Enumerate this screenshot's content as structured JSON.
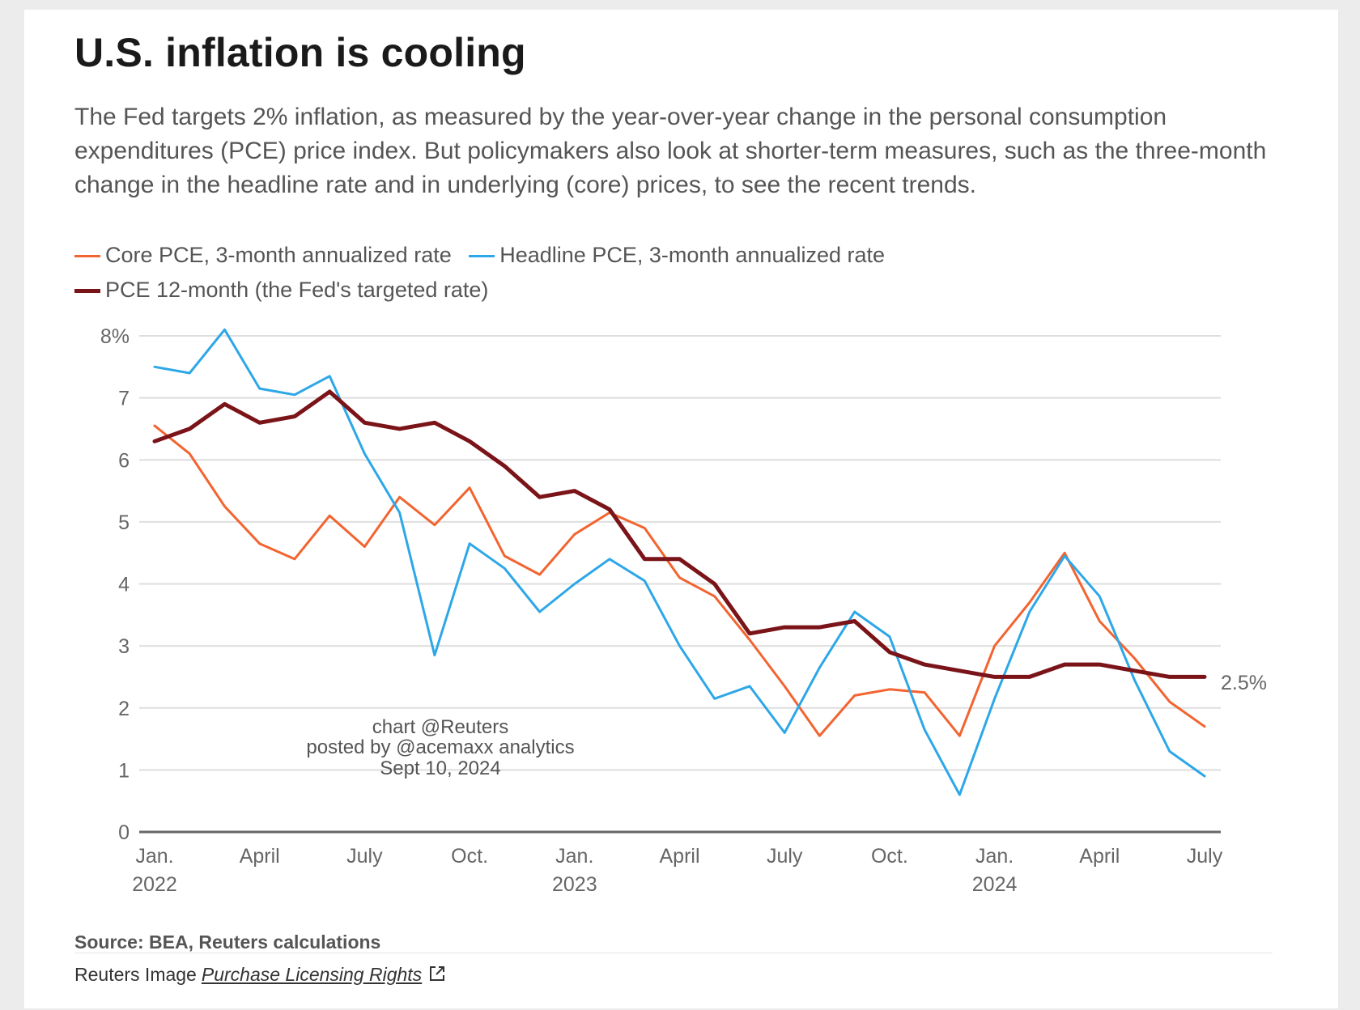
{
  "header": {
    "title": "U.S. inflation is cooling",
    "subtitle": "The Fed targets 2% inflation, as measured by the year-over-year change in the personal consumption expenditures (PCE) price index. But policymakers also look at shorter-term measures, such as the three-month change in the headline rate and in underlying (core) prices, to see the recent trends."
  },
  "legend": {
    "items": [
      {
        "label": "Core PCE, 3-month annualized rate",
        "color": "#f26430"
      },
      {
        "label": "Headline PCE, 3-month annualized rate",
        "color": "#2da7e8"
      },
      {
        "label": "PCE 12-month (the Fed's targeted rate)",
        "color": "#7a1419"
      }
    ]
  },
  "chart_data": {
    "type": "line",
    "x": [
      "2022-01",
      "2022-02",
      "2022-03",
      "2022-04",
      "2022-05",
      "2022-06",
      "2022-07",
      "2022-08",
      "2022-09",
      "2022-10",
      "2022-11",
      "2022-12",
      "2023-01",
      "2023-02",
      "2023-03",
      "2023-04",
      "2023-05",
      "2023-06",
      "2023-07",
      "2023-08",
      "2023-09",
      "2023-10",
      "2023-11",
      "2023-12",
      "2024-01",
      "2024-02",
      "2024-03",
      "2024-04",
      "2024-05",
      "2024-06",
      "2024-07"
    ],
    "x_ticks": [
      {
        "x": "2022-01",
        "label": "Jan.",
        "sub": "2022"
      },
      {
        "x": "2022-04",
        "label": "April",
        "sub": ""
      },
      {
        "x": "2022-07",
        "label": "July",
        "sub": ""
      },
      {
        "x": "2022-10",
        "label": "Oct.",
        "sub": ""
      },
      {
        "x": "2023-01",
        "label": "Jan.",
        "sub": "2023"
      },
      {
        "x": "2023-04",
        "label": "April",
        "sub": ""
      },
      {
        "x": "2023-07",
        "label": "July",
        "sub": ""
      },
      {
        "x": "2023-10",
        "label": "Oct.",
        "sub": ""
      },
      {
        "x": "2024-01",
        "label": "Jan.",
        "sub": "2024"
      },
      {
        "x": "2024-04",
        "label": "April",
        "sub": ""
      },
      {
        "x": "2024-07",
        "label": "July",
        "sub": ""
      }
    ],
    "y_ticks": [
      {
        "value": 8,
        "label": "8%"
      },
      {
        "value": 7,
        "label": "7"
      },
      {
        "value": 6,
        "label": "6"
      },
      {
        "value": 5,
        "label": "5"
      },
      {
        "value": 4,
        "label": "4"
      },
      {
        "value": 3,
        "label": "3"
      },
      {
        "value": 2,
        "label": "2"
      },
      {
        "value": 1,
        "label": "1"
      },
      {
        "value": 0,
        "label": "0"
      }
    ],
    "ylim": [
      0,
      8
    ],
    "grid": true,
    "series": [
      {
        "name": "Core PCE, 3-month annualized rate",
        "color": "#f26430",
        "values": [
          6.55,
          6.1,
          5.25,
          4.65,
          4.4,
          5.1,
          4.6,
          5.4,
          4.95,
          5.55,
          4.45,
          4.15,
          4.8,
          5.15,
          4.9,
          4.1,
          3.8,
          3.1,
          2.35,
          1.55,
          2.2,
          2.3,
          2.25,
          1.55,
          3.0,
          3.7,
          4.5,
          3.4,
          2.8,
          2.1,
          1.7
        ]
      },
      {
        "name": "Headline PCE, 3-month annualized rate",
        "color": "#2da7e8",
        "values": [
          7.5,
          7.4,
          8.1,
          7.15,
          7.05,
          7.35,
          6.1,
          5.15,
          2.85,
          4.65,
          4.25,
          3.55,
          4.0,
          4.4,
          4.05,
          3.0,
          2.15,
          2.35,
          1.6,
          2.65,
          3.55,
          3.15,
          1.65,
          0.6,
          2.15,
          3.55,
          4.45,
          3.8,
          2.45,
          1.3,
          0.9
        ]
      },
      {
        "name": "PCE 12-month (the Fed's targeted rate)",
        "color": "#7a1419",
        "values": [
          6.3,
          6.5,
          6.9,
          6.6,
          6.7,
          7.1,
          6.6,
          6.5,
          6.6,
          6.3,
          5.9,
          5.4,
          5.5,
          5.2,
          4.4,
          4.4,
          4.0,
          3.2,
          3.3,
          3.3,
          3.4,
          2.9,
          2.7,
          2.6,
          2.5,
          2.5,
          2.7,
          2.7,
          2.6,
          2.5,
          2.5
        ]
      }
    ],
    "annotations": [
      {
        "label": "2.5%"
      }
    ]
  },
  "watermark": {
    "line1": "chart @Reuters",
    "line2": "posted by @acemaxx analytics",
    "line3": "Sept 10, 2024"
  },
  "footer": {
    "source": "Source: BEA, Reuters calculations",
    "credit_prefix": "Reuters Image",
    "link_label": "Purchase Licensing Rights"
  }
}
